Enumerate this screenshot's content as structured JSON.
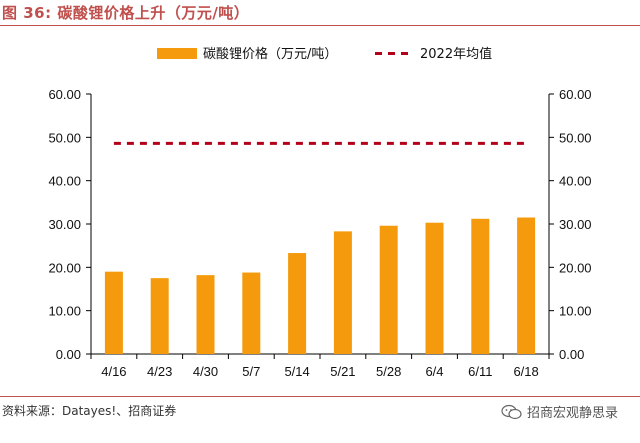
{
  "figure": {
    "title": "图 36:  碳酸锂价格上升（万元/吨）",
    "source": "资料来源：Datayes!、招商证券",
    "watermark": "招商宏观静思录",
    "watermark_icon": "wechat-icon"
  },
  "chart_data": {
    "type": "bar",
    "categories": [
      "4/16",
      "4/23",
      "4/30",
      "5/7",
      "5/14",
      "5/21",
      "5/28",
      "6/4",
      "6/11",
      "6/18"
    ],
    "series": [
      {
        "name": "碳酸锂价格（万元/吨）",
        "type": "bar",
        "color": "#f59a0c",
        "values": [
          19.0,
          17.5,
          18.2,
          18.8,
          23.3,
          28.3,
          29.6,
          30.3,
          31.2,
          31.5
        ]
      },
      {
        "name": "2022年均值",
        "type": "dashed-line",
        "color": "#b3001b",
        "values": [
          48.6,
          48.6,
          48.6,
          48.6,
          48.6,
          48.6,
          48.6,
          48.6,
          48.6,
          48.6
        ]
      }
    ],
    "y_ticks": [
      "0.00",
      "10.00",
      "20.00",
      "30.00",
      "40.00",
      "50.00",
      "60.00"
    ],
    "ylim": [
      0,
      60
    ],
    "right_axis_mirrors_left": true,
    "legend_position": "top",
    "grid": false
  }
}
